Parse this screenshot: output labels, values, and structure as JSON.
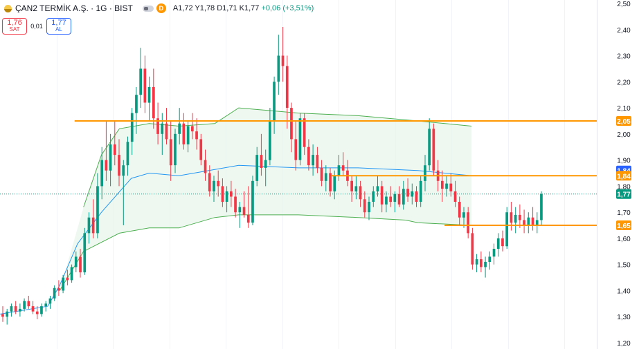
{
  "header": {
    "symbol": "ÇAN2 TERMİK A.Ş. · 1G · BIST",
    "interval_badge": "D",
    "ohlc": "A1,72  Y1,78  D1,71  K1,77",
    "change": "+0,06 (+3,51%)"
  },
  "trade": {
    "sell_price": "1,76",
    "sell_label": "SAT",
    "spread": "0,01",
    "buy_price": "1,77",
    "buy_label": "AL"
  },
  "colors": {
    "up": "#089981",
    "down": "#f23645",
    "orange": "#ff9800",
    "blue_line": "#2196f3",
    "green_band": "#4caf50",
    "band_fill": "#e8f5e9"
  },
  "chart_data": {
    "type": "candlestick",
    "ylim": [
      1.2,
      2.5
    ],
    "yticks": [
      "1,20",
      "1,30",
      "1,40",
      "1,50",
      "1,60",
      "1,70",
      "1,80",
      "1,90",
      "2,00",
      "2,10",
      "2,20",
      "2,30",
      "2,40",
      "2,50"
    ],
    "last_price": 1.77,
    "last_price_label": "1,77",
    "candles": [
      [
        1.31,
        1.34,
        1.28,
        1.3
      ],
      [
        1.3,
        1.33,
        1.27,
        1.32
      ],
      [
        1.32,
        1.35,
        1.3,
        1.34
      ],
      [
        1.34,
        1.36,
        1.31,
        1.32
      ],
      [
        1.32,
        1.35,
        1.3,
        1.33
      ],
      [
        1.33,
        1.37,
        1.32,
        1.36
      ],
      [
        1.36,
        1.38,
        1.33,
        1.34
      ],
      [
        1.34,
        1.36,
        1.31,
        1.32
      ],
      [
        1.32,
        1.34,
        1.29,
        1.31
      ],
      [
        1.31,
        1.35,
        1.3,
        1.34
      ],
      [
        1.34,
        1.36,
        1.32,
        1.35
      ],
      [
        1.35,
        1.38,
        1.33,
        1.37
      ],
      [
        1.37,
        1.42,
        1.36,
        1.41
      ],
      [
        1.41,
        1.44,
        1.38,
        1.4
      ],
      [
        1.4,
        1.46,
        1.39,
        1.45
      ],
      [
        1.45,
        1.48,
        1.42,
        1.44
      ],
      [
        1.44,
        1.5,
        1.43,
        1.49
      ],
      [
        1.49,
        1.55,
        1.47,
        1.53
      ],
      [
        1.53,
        1.56,
        1.45,
        1.47
      ],
      [
        1.47,
        1.64,
        1.46,
        1.62
      ],
      [
        1.62,
        1.7,
        1.58,
        1.68
      ],
      [
        1.68,
        1.75,
        1.6,
        1.62
      ],
      [
        1.62,
        1.85,
        1.6,
        1.8
      ],
      [
        1.8,
        1.95,
        1.75,
        1.9
      ],
      [
        1.9,
        2.05,
        1.82,
        1.86
      ],
      [
        1.86,
        2.0,
        1.8,
        1.96
      ],
      [
        1.96,
        2.05,
        1.88,
        1.92
      ],
      [
        1.92,
        1.98,
        1.8,
        1.84
      ],
      [
        1.84,
        1.9,
        1.65,
        1.88
      ],
      [
        1.88,
        1.99,
        1.84,
        1.97
      ],
      [
        1.97,
        2.1,
        1.92,
        2.08
      ],
      [
        2.08,
        2.18,
        2.0,
        2.15
      ],
      [
        2.15,
        2.33,
        2.1,
        2.25
      ],
      [
        2.25,
        2.3,
        2.08,
        2.12
      ],
      [
        2.12,
        2.22,
        2.05,
        2.18
      ],
      [
        2.18,
        2.25,
        2.02,
        2.06
      ],
      [
        2.06,
        2.12,
        1.96,
        2.0
      ],
      [
        2.0,
        2.08,
        1.92,
        2.04
      ],
      [
        2.04,
        2.1,
        1.96,
        1.98
      ],
      [
        1.98,
        2.05,
        1.82,
        1.88
      ],
      [
        1.88,
        2.02,
        1.85,
        2.0
      ],
      [
        2.0,
        2.1,
        1.96,
        2.04
      ],
      [
        2.04,
        2.08,
        1.94,
        1.96
      ],
      [
        1.96,
        2.05,
        1.93,
        2.03
      ],
      [
        2.03,
        2.08,
        1.98,
        2.01
      ],
      [
        2.01,
        2.06,
        1.94,
        1.98
      ],
      [
        1.98,
        2.0,
        1.88,
        1.9
      ],
      [
        1.9,
        1.94,
        1.82,
        1.85
      ],
      [
        1.85,
        1.88,
        1.76,
        1.78
      ],
      [
        1.78,
        1.84,
        1.74,
        1.82
      ],
      [
        1.82,
        1.86,
        1.76,
        1.8
      ],
      [
        1.8,
        1.83,
        1.72,
        1.74
      ],
      [
        1.74,
        1.8,
        1.7,
        1.78
      ],
      [
        1.78,
        1.82,
        1.72,
        1.76
      ],
      [
        1.76,
        1.79,
        1.68,
        1.7
      ],
      [
        1.7,
        1.74,
        1.64,
        1.72
      ],
      [
        1.72,
        1.78,
        1.68,
        1.69
      ],
      [
        1.69,
        1.8,
        1.64,
        1.66
      ],
      [
        1.66,
        1.84,
        1.65,
        1.82
      ],
      [
        1.82,
        1.95,
        1.8,
        1.92
      ],
      [
        1.92,
        2.0,
        1.84,
        1.87
      ],
      [
        1.87,
        1.94,
        1.8,
        1.9
      ],
      [
        1.9,
        2.1,
        1.88,
        2.05
      ],
      [
        2.05,
        2.22,
        2.0,
        2.2
      ],
      [
        2.2,
        2.38,
        2.15,
        2.3
      ],
      [
        2.3,
        2.41,
        2.2,
        2.26
      ],
      [
        2.26,
        2.3,
        2.02,
        2.1
      ],
      [
        2.1,
        2.12,
        1.93,
        1.98
      ],
      [
        1.98,
        2.05,
        1.86,
        1.9
      ],
      [
        1.9,
        2.08,
        1.88,
        2.06
      ],
      [
        2.06,
        2.08,
        1.92,
        1.95
      ],
      [
        1.95,
        1.98,
        1.86,
        1.88
      ],
      [
        1.88,
        1.96,
        1.84,
        1.92
      ],
      [
        1.92,
        1.95,
        1.85,
        1.87
      ],
      [
        1.87,
        1.9,
        1.8,
        1.82
      ],
      [
        1.82,
        1.88,
        1.78,
        1.85
      ],
      [
        1.85,
        1.87,
        1.76,
        1.78
      ],
      [
        1.78,
        1.86,
        1.75,
        1.84
      ],
      [
        1.84,
        1.92,
        1.82,
        1.88
      ],
      [
        1.88,
        1.93,
        1.84,
        1.86
      ],
      [
        1.86,
        1.9,
        1.8,
        1.82
      ],
      [
        1.82,
        1.84,
        1.74,
        1.78
      ],
      [
        1.78,
        1.84,
        1.75,
        1.8
      ],
      [
        1.8,
        1.82,
        1.72,
        1.75
      ],
      [
        1.75,
        1.78,
        1.68,
        1.7
      ],
      [
        1.7,
        1.76,
        1.67,
        1.74
      ],
      [
        1.74,
        1.8,
        1.72,
        1.78
      ],
      [
        1.78,
        1.84,
        1.76,
        1.8
      ],
      [
        1.8,
        1.82,
        1.7,
        1.73
      ],
      [
        1.73,
        1.78,
        1.7,
        1.76
      ],
      [
        1.76,
        1.8,
        1.72,
        1.74
      ],
      [
        1.74,
        1.78,
        1.7,
        1.77
      ],
      [
        1.77,
        1.8,
        1.72,
        1.73
      ],
      [
        1.73,
        1.82,
        1.71,
        1.79
      ],
      [
        1.79,
        1.83,
        1.74,
        1.76
      ],
      [
        1.76,
        1.81,
        1.73,
        1.78
      ],
      [
        1.78,
        1.8,
        1.72,
        1.74
      ],
      [
        1.74,
        1.84,
        1.72,
        1.82
      ],
      [
        1.82,
        1.92,
        1.78,
        1.88
      ],
      [
        1.88,
        2.06,
        1.86,
        2.02
      ],
      [
        2.02,
        2.04,
        1.84,
        1.86
      ],
      [
        1.86,
        1.9,
        1.78,
        1.82
      ],
      [
        1.82,
        1.86,
        1.74,
        1.79
      ],
      [
        1.79,
        1.84,
        1.76,
        1.81
      ],
      [
        1.81,
        1.85,
        1.76,
        1.78
      ],
      [
        1.78,
        1.82,
        1.72,
        1.74
      ],
      [
        1.74,
        1.76,
        1.65,
        1.68
      ],
      [
        1.68,
        1.72,
        1.64,
        1.7
      ],
      [
        1.7,
        1.72,
        1.6,
        1.62
      ],
      [
        1.62,
        1.64,
        1.48,
        1.5
      ],
      [
        1.5,
        1.54,
        1.47,
        1.52
      ],
      [
        1.52,
        1.55,
        1.47,
        1.49
      ],
      [
        1.49,
        1.53,
        1.45,
        1.51
      ],
      [
        1.51,
        1.55,
        1.48,
        1.53
      ],
      [
        1.53,
        1.58,
        1.5,
        1.56
      ],
      [
        1.56,
        1.62,
        1.53,
        1.6
      ],
      [
        1.6,
        1.63,
        1.55,
        1.57
      ],
      [
        1.57,
        1.72,
        1.56,
        1.7
      ],
      [
        1.7,
        1.74,
        1.63,
        1.66
      ],
      [
        1.66,
        1.72,
        1.62,
        1.69
      ],
      [
        1.69,
        1.73,
        1.64,
        1.67
      ],
      [
        1.67,
        1.71,
        1.62,
        1.65
      ],
      [
        1.65,
        1.7,
        1.62,
        1.68
      ],
      [
        1.68,
        1.72,
        1.63,
        1.65
      ],
      [
        1.65,
        1.7,
        1.62,
        1.67
      ],
      [
        1.67,
        1.78,
        1.65,
        1.77
      ]
    ],
    "horizontal_lines": [
      {
        "price": 2.05,
        "label": "2,05",
        "x_start_frac": 0.125
      },
      {
        "price": 1.84,
        "label": "1,84",
        "x_start_frac": 0.555
      },
      {
        "price": 1.65,
        "label": "1,65",
        "x_start_frac": 0.745
      }
    ],
    "blue_line_label": "1,84",
    "band": {
      "upper": [
        [
          0.14,
          1.72
        ],
        [
          0.17,
          1.92
        ],
        [
          0.2,
          2.02
        ],
        [
          0.25,
          2.04
        ],
        [
          0.3,
          2.03
        ],
        [
          0.36,
          2.04
        ],
        [
          0.4,
          2.1
        ],
        [
          0.5,
          2.08
        ],
        [
          0.6,
          2.07
        ],
        [
          0.7,
          2.05
        ],
        [
          0.79,
          2.03
        ]
      ],
      "lower": [
        [
          0.1,
          1.4
        ],
        [
          0.14,
          1.55
        ],
        [
          0.2,
          1.62
        ],
        [
          0.25,
          1.64
        ],
        [
          0.3,
          1.64
        ],
        [
          0.36,
          1.68
        ],
        [
          0.4,
          1.69
        ],
        [
          0.5,
          1.69
        ],
        [
          0.6,
          1.68
        ],
        [
          0.68,
          1.67
        ],
        [
          0.7,
          1.66
        ],
        [
          0.79,
          1.65
        ]
      ]
    },
    "blue_line": [
      [
        0.0,
        1.31
      ],
      [
        0.08,
        1.34
      ],
      [
        0.1,
        1.42
      ],
      [
        0.13,
        1.58
      ],
      [
        0.17,
        1.7
      ],
      [
        0.22,
        1.83
      ],
      [
        0.25,
        1.85
      ],
      [
        0.3,
        1.84
      ],
      [
        0.35,
        1.86
      ],
      [
        0.4,
        1.88
      ],
      [
        0.5,
        1.87
      ],
      [
        0.6,
        1.87
      ],
      [
        0.7,
        1.86
      ],
      [
        0.79,
        1.84
      ]
    ]
  }
}
